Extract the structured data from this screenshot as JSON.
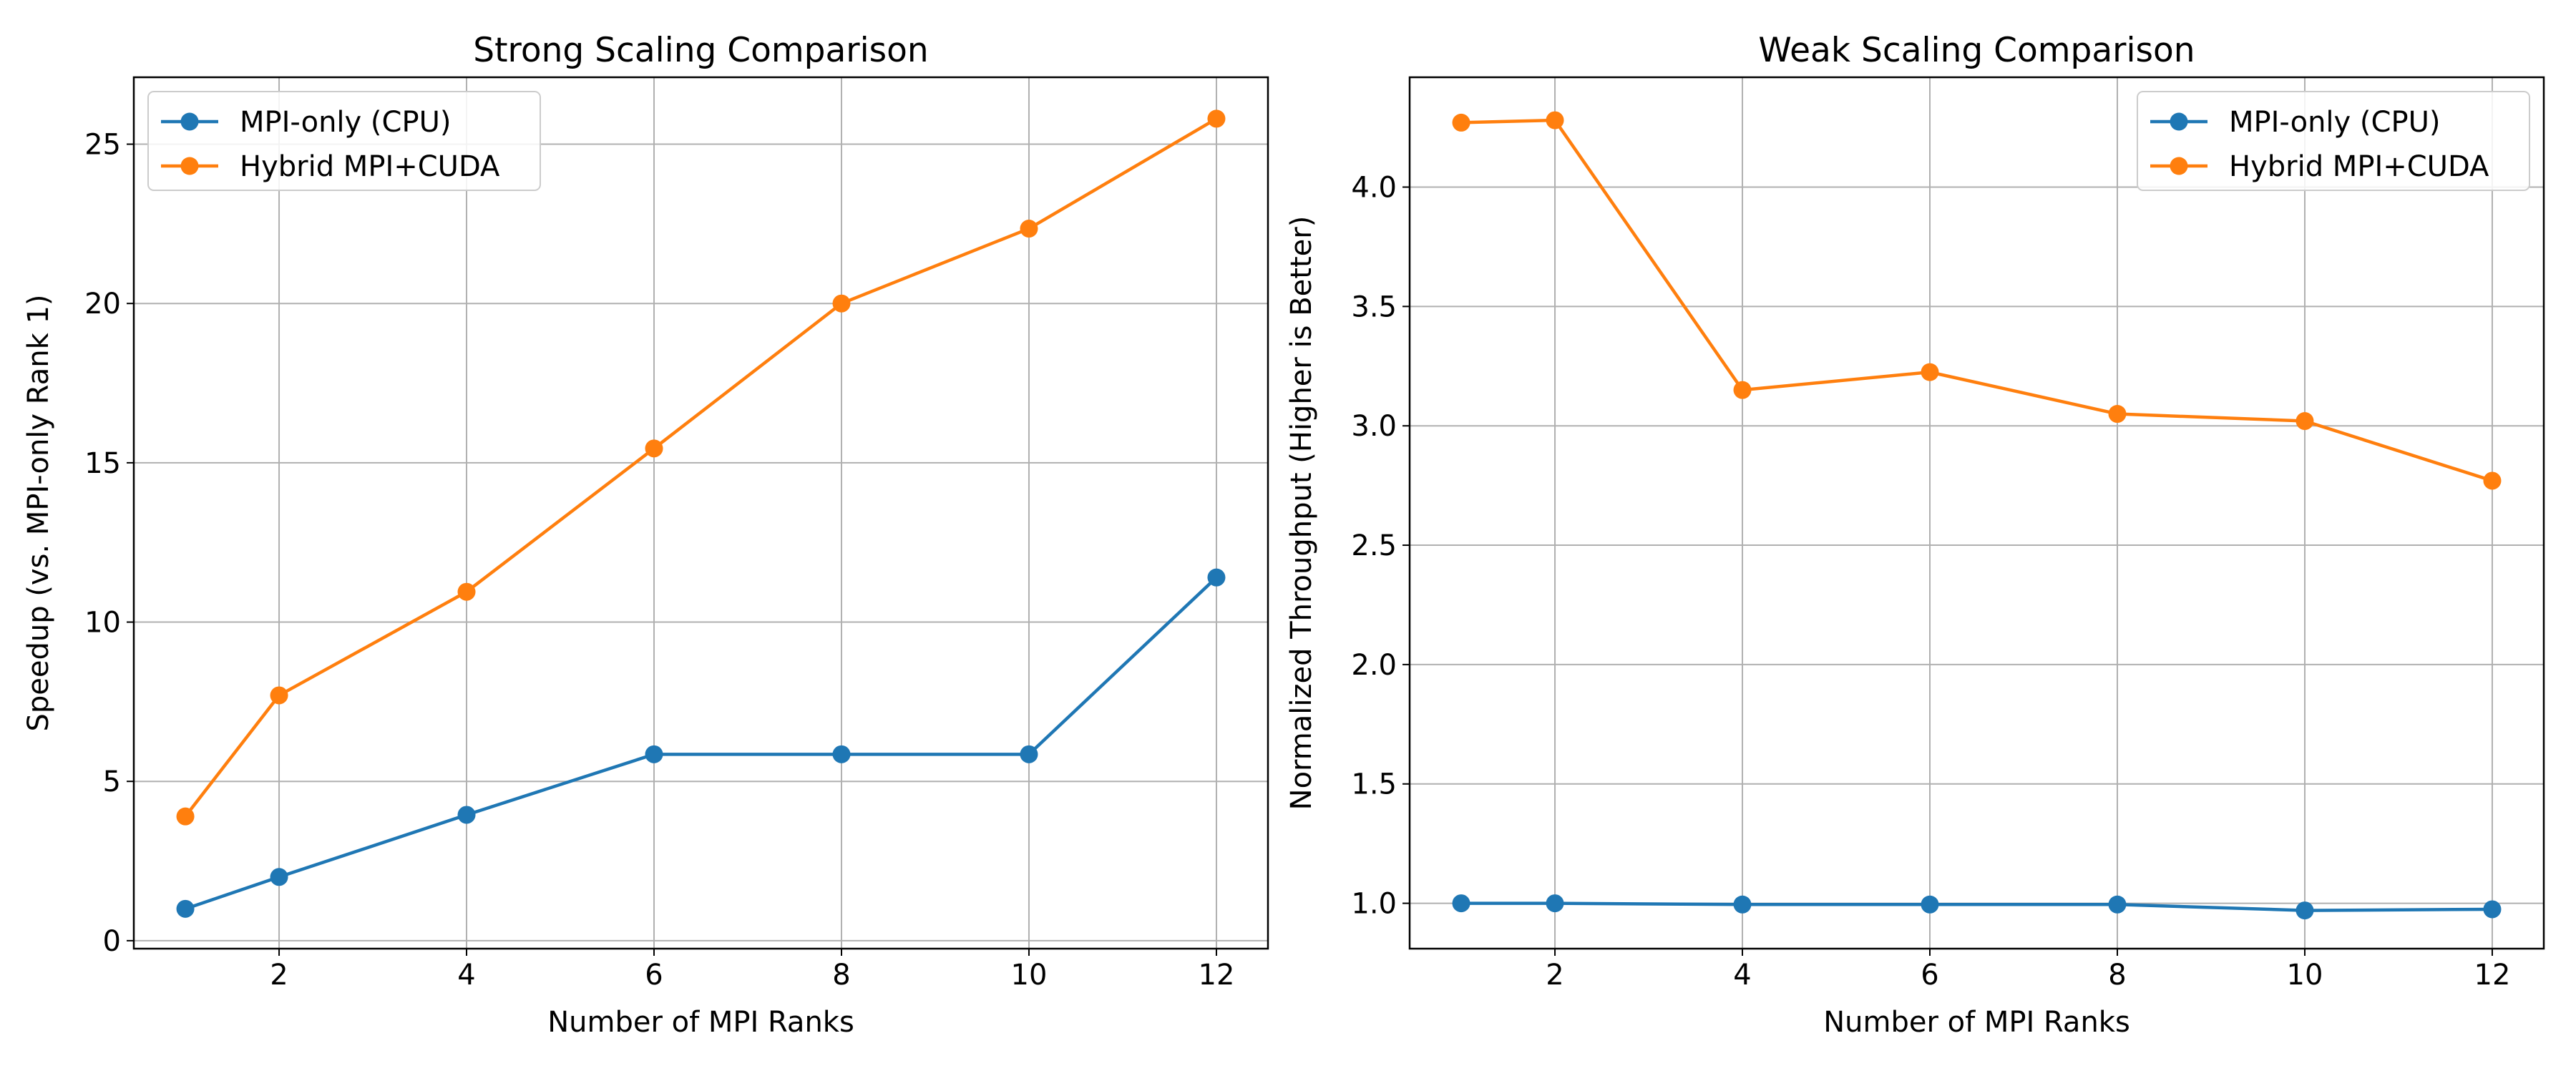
{
  "chart_data": [
    {
      "type": "line",
      "title": "Strong Scaling Comparison",
      "xlabel": "Number of MPI Ranks",
      "ylabel": "Speedup (vs. MPI-only Rank 1)",
      "xlim": [
        0.45,
        12.55
      ],
      "ylim": [
        -0.25,
        27.1
      ],
      "xticks": [
        2,
        4,
        6,
        8,
        10,
        12
      ],
      "yticks": [
        0,
        5,
        10,
        15,
        20,
        25
      ],
      "xtick_labels": [
        "2",
        "4",
        "6",
        "8",
        "10",
        "12"
      ],
      "ytick_labels": [
        "0",
        "5",
        "10",
        "15",
        "20",
        "25"
      ],
      "grid": true,
      "legend_position": "upper-left",
      "x": [
        1,
        2,
        4,
        6,
        8,
        10,
        12
      ],
      "series": [
        {
          "name": "MPI-only (CPU)",
          "color": "#1f77b4",
          "values": [
            1.0,
            2.0,
            3.95,
            5.85,
            5.85,
            5.85,
            11.4
          ]
        },
        {
          "name": "Hybrid MPI+CUDA",
          "color": "#ff7f0e",
          "values": [
            3.9,
            7.7,
            10.95,
            15.45,
            20.0,
            22.35,
            25.8
          ]
        }
      ]
    },
    {
      "type": "line",
      "title": "Weak Scaling Comparison",
      "xlabel": "Number of MPI Ranks",
      "ylabel": "Normalized Throughput (Higher is Better)",
      "xlim": [
        0.45,
        12.55
      ],
      "ylim": [
        0.81,
        4.46
      ],
      "xticks": [
        2,
        4,
        6,
        8,
        10,
        12
      ],
      "yticks": [
        1.0,
        1.5,
        2.0,
        2.5,
        3.0,
        3.5,
        4.0
      ],
      "xtick_labels": [
        "2",
        "4",
        "6",
        "8",
        "10",
        "12"
      ],
      "ytick_labels": [
        "1.0",
        "1.5",
        "2.0",
        "2.5",
        "3.0",
        "3.5",
        "4.0"
      ],
      "grid": true,
      "legend_position": "upper-right",
      "x": [
        1,
        2,
        4,
        6,
        8,
        10,
        12
      ],
      "series": [
        {
          "name": "MPI-only (CPU)",
          "color": "#1f77b4",
          "values": [
            1.0,
            1.0,
            0.995,
            0.995,
            0.995,
            0.97,
            0.975
          ]
        },
        {
          "name": "Hybrid MPI+CUDA",
          "color": "#ff7f0e",
          "values": [
            4.27,
            4.28,
            3.15,
            3.225,
            3.05,
            3.02,
            2.77
          ]
        }
      ]
    }
  ]
}
